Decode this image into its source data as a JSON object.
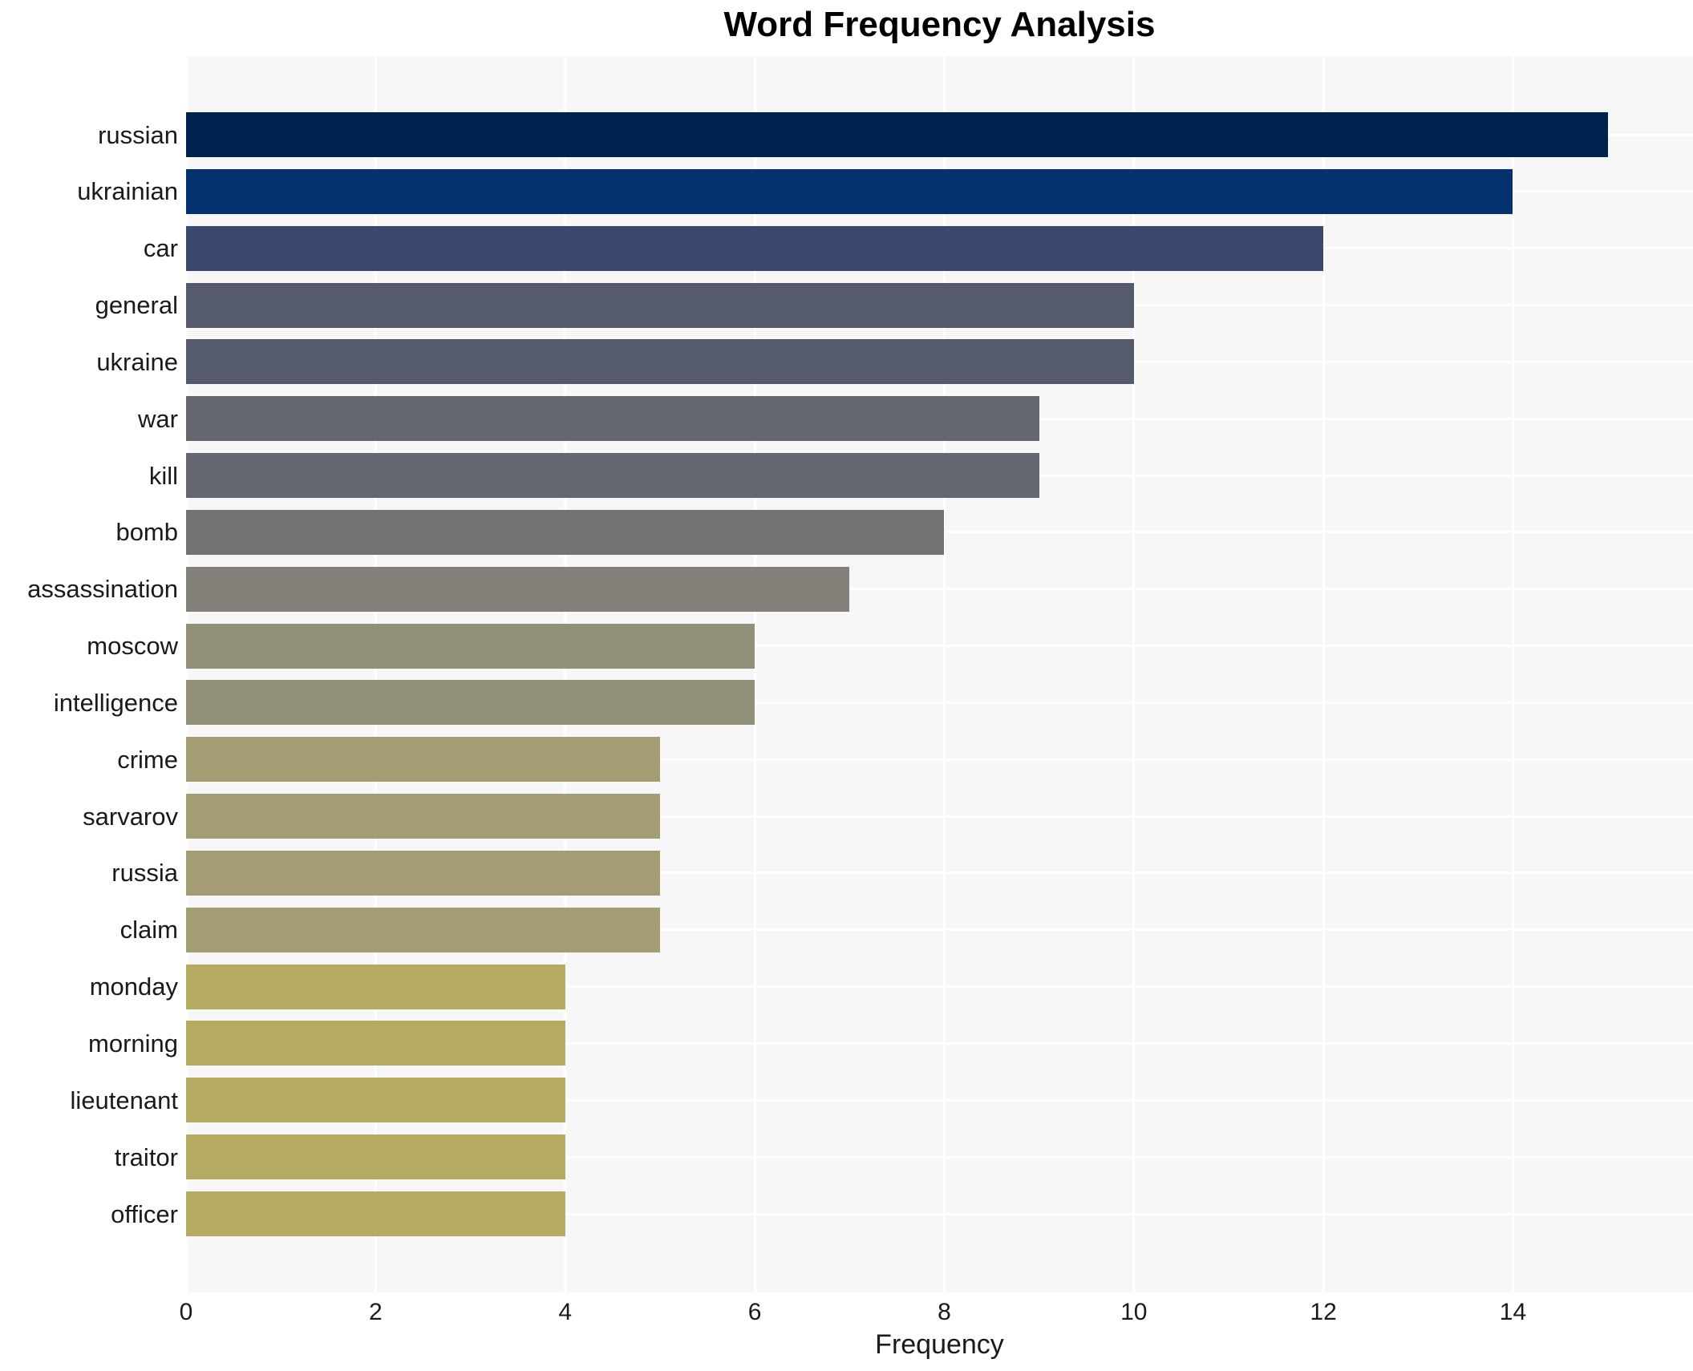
{
  "chart": {
    "title": "Word Frequency Analysis",
    "xlabel": "Frequency"
  },
  "chart_data": {
    "type": "bar",
    "orientation": "horizontal",
    "title": "Word Frequency Analysis",
    "xlabel": "Frequency",
    "ylabel": "",
    "categories": [
      "russian",
      "ukrainian",
      "car",
      "general",
      "ukraine",
      "war",
      "kill",
      "bomb",
      "assassination",
      "moscow",
      "intelligence",
      "crime",
      "sarvarov",
      "russia",
      "claim",
      "monday",
      "morning",
      "lieutenant",
      "traitor",
      "officer"
    ],
    "values": [
      15,
      14,
      12,
      10,
      10,
      9,
      9,
      8,
      7,
      6,
      6,
      5,
      5,
      5,
      5,
      4,
      4,
      4,
      4,
      4
    ],
    "bar_colors": [
      "#00224e",
      "#03326e",
      "#3a476e",
      "#565b6c",
      "#565b6c",
      "#64676f",
      "#64676f",
      "#727272",
      "#83817a",
      "#93907a",
      "#93907a",
      "#a49d73",
      "#a49d73",
      "#a49d73",
      "#a49d73",
      "#b6ab63",
      "#b6ab63",
      "#b6ab63",
      "#b6ab63",
      "#b6ab63"
    ],
    "xticks": [
      0,
      2,
      4,
      6,
      8,
      10,
      12,
      14
    ],
    "xlim": [
      0,
      15.9
    ],
    "grid": true,
    "legend_position": "none",
    "plot_bg_color": "#f7f7f8",
    "grid_color": "#ffffff",
    "text_color": "#1a1a1a"
  }
}
